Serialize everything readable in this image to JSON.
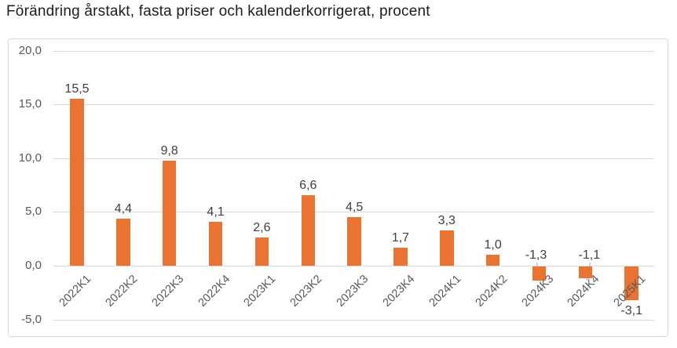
{
  "title": "Förändring årstakt, fasta priser och kalenderkorrigerat, procent",
  "chart_data": {
    "type": "bar",
    "title": "Förändring årstakt, fasta priser och kalenderkorrigerat, procent",
    "categories": [
      "2022K1",
      "2022K2",
      "2022K3",
      "2022K4",
      "2023K1",
      "2023K2",
      "2023K3",
      "2023K4",
      "2024K1",
      "2024K2",
      "2024K3",
      "2024K4",
      "2025K1"
    ],
    "values": [
      15.5,
      4.4,
      9.8,
      4.1,
      2.6,
      6.6,
      4.5,
      1.7,
      3.3,
      1.0,
      -1.3,
      -1.1,
      -3.1
    ],
    "data_labels": [
      "15,5",
      "4,4",
      "9,8",
      "4,1",
      "2,6",
      "6,6",
      "4,5",
      "1,7",
      "3,3",
      "1,0",
      "-1,3",
      "-1,1",
      "-3,1"
    ],
    "y_tick_values": [
      20,
      15,
      10,
      5,
      0,
      -5
    ],
    "y_tick_labels": [
      "20,0",
      "15,0",
      "10,0",
      "5,0",
      "0,0",
      "-5,0"
    ],
    "ylim": [
      -5,
      20
    ],
    "xlabel": "",
    "ylabel": "",
    "grid": true,
    "legend": false,
    "decimal_separator": ",",
    "colors": {
      "bar": "#EA7331",
      "gridline": "#D9D9D9",
      "frame_border": "#D9D9D9",
      "axis_text": "#595959",
      "data_label_text": "#404040",
      "title_text": "#1D1D1B",
      "leader_line": "#A6A6A6",
      "background": "#FFFFFF"
    }
  }
}
